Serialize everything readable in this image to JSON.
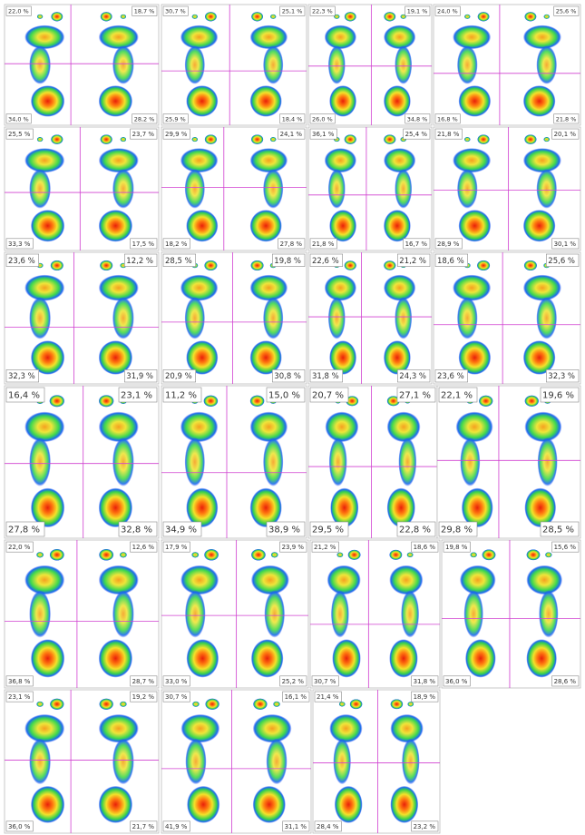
{
  "panels": [
    {
      "top_left": "22,0 %",
      "top_right": "18,7 %",
      "bottom_left": "34,0 %",
      "bottom_right": "28,2 %"
    },
    {
      "top_left": "30,7 %",
      "top_right": "25,1 %",
      "bottom_left": "25,9 %",
      "bottom_right": "18,4 %"
    },
    {
      "top_left": "22,3 %",
      "top_right": "19,1 %",
      "bottom_left": "26,0 %",
      "bottom_right": "34,8 %"
    },
    {
      "top_left": "24,0 %",
      "top_right": "25,6 %",
      "bottom_left": "16,8 %",
      "bottom_right": "21,8 %"
    },
    {
      "top_left": "25,5 %",
      "top_right": "23,7 %",
      "bottom_left": "33,3 %",
      "bottom_right": "17,5 %"
    },
    {
      "top_left": "29,9 %",
      "top_right": "24,1 %",
      "bottom_left": "18,2 %",
      "bottom_right": "27,8 %"
    },
    {
      "top_left": "36,1 %",
      "top_right": "25,4 %",
      "bottom_left": "21,8 %",
      "bottom_right": "16,7 %"
    },
    {
      "top_left": "21,8 %",
      "top_right": "20,1 %",
      "bottom_left": "28,9 %",
      "bottom_right": "30,1 %"
    },
    {
      "top_left": "23,6 %",
      "top_right": "12,2 %",
      "bottom_left": "32,3 %",
      "bottom_right": "31,9 %"
    },
    {
      "top_left": "28,5 %",
      "top_right": "19,8 %",
      "bottom_left": "20,9 %",
      "bottom_right": "30,8 %"
    },
    {
      "top_left": "22,6 %",
      "top_right": "21,2 %",
      "bottom_left": "31,8 %",
      "bottom_right": "24,3 %"
    },
    {
      "top_left": "18,6 %",
      "top_right": "25,6 %",
      "bottom_left": "23,6 %",
      "bottom_right": "32,3 %"
    },
    {
      "top_left": "16,4 %",
      "top_right": "23,1 %",
      "bottom_left": "27,8 %",
      "bottom_right": "32,8 %"
    },
    {
      "top_left": "11,2 %",
      "top_right": "15,0 %",
      "bottom_left": "34,9 %",
      "bottom_right": "38,9 %"
    },
    {
      "top_left": "20,7 %",
      "top_right": "27,1 %",
      "bottom_left": "29,5 %",
      "bottom_right": "22,8 %"
    },
    {
      "top_left": "22,1 %",
      "top_right": "19,6 %",
      "bottom_left": "29,8 %",
      "bottom_right": "28,5 %"
    },
    {
      "top_left": "22,0 %",
      "top_right": "12,6 %",
      "bottom_left": "36,8 %",
      "bottom_right": "28,7 %"
    },
    {
      "top_left": "17,9 %",
      "top_right": "23,9 %",
      "bottom_left": "33,0 %",
      "bottom_right": "25,2 %"
    },
    {
      "top_left": "21,2 %",
      "top_right": "18,6 %",
      "bottom_left": "30,7 %",
      "bottom_right": "31,8 %"
    },
    {
      "top_left": "19,8 %",
      "top_right": "15,6 %",
      "bottom_left": "36,0 %",
      "bottom_right": "28,6 %"
    },
    {
      "top_left": "23,1 %",
      "top_right": "19,2 %",
      "bottom_left": "36,0 %",
      "bottom_right": "21,7 %"
    },
    {
      "top_left": "30,7 %",
      "top_right": "16,1 %",
      "bottom_left": "41,9 %",
      "bottom_right": "31,1 %"
    },
    {
      "top_left": "21,4 %",
      "top_right": "18,9 %",
      "bottom_left": "28,4 %",
      "bottom_right": "23,2 %"
    }
  ]
}
